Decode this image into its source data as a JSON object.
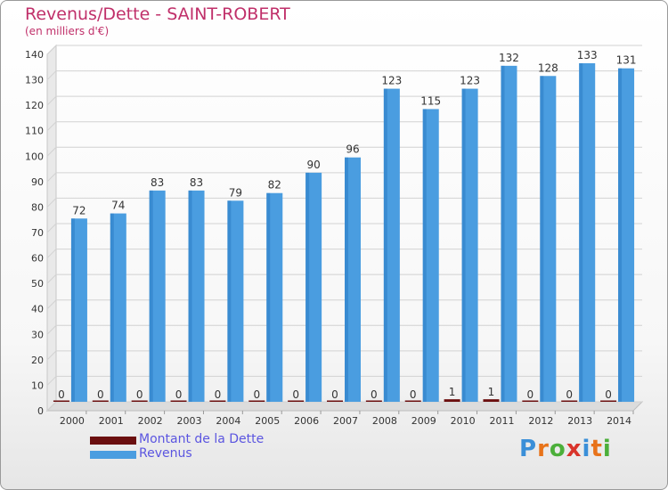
{
  "header": {
    "title": "Revenus/Dette - SAINT-ROBERT",
    "subtitle": "(en milliers d'€)"
  },
  "logo": {
    "text": "Proxiti",
    "colors": [
      "#3a8fd8",
      "#e8731a",
      "#4caf3a",
      "#d9342b",
      "#3a8fd8",
      "#e8731a",
      "#4caf3a"
    ]
  },
  "colors": {
    "dette": "#6b0f0f",
    "revenus": "#4a9de0",
    "text_accent": "#c0306a",
    "legend_text": "#5b55e0"
  },
  "chart_data": {
    "type": "bar",
    "title": "Revenus/Dette - SAINT-ROBERT",
    "subtitle": "(en milliers d'€)",
    "categories": [
      "2000",
      "2001",
      "2002",
      "2003",
      "2004",
      "2005",
      "2006",
      "2007",
      "2008",
      "2009",
      "2010",
      "2011",
      "2012",
      "2013",
      "2014"
    ],
    "series": [
      {
        "name": "Montant de la Dette",
        "values": [
          0,
          0,
          0,
          0,
          0,
          0,
          0,
          0,
          0,
          0,
          1,
          1,
          0,
          0,
          0
        ],
        "labels": [
          "0",
          "0",
          "0",
          "0",
          "0",
          "0",
          "0",
          "0",
          "0",
          "0",
          "1",
          "1",
          "0",
          "0",
          "0"
        ]
      },
      {
        "name": "Revenus",
        "values": [
          72,
          74,
          83,
          83,
          79,
          82,
          90,
          96,
          123,
          115,
          123,
          132,
          128,
          133,
          131
        ],
        "labels": [
          "72",
          "74",
          "83",
          "83",
          "79",
          "82",
          "90",
          "96",
          "123",
          "115",
          "123",
          "132",
          "128",
          "133",
          "131"
        ]
      }
    ],
    "ylim": [
      0,
      140
    ],
    "yticks": [
      0,
      10,
      20,
      30,
      40,
      50,
      60,
      70,
      80,
      90,
      100,
      110,
      120,
      130,
      140
    ],
    "grid": true,
    "legend_position": "bottom-left"
  }
}
